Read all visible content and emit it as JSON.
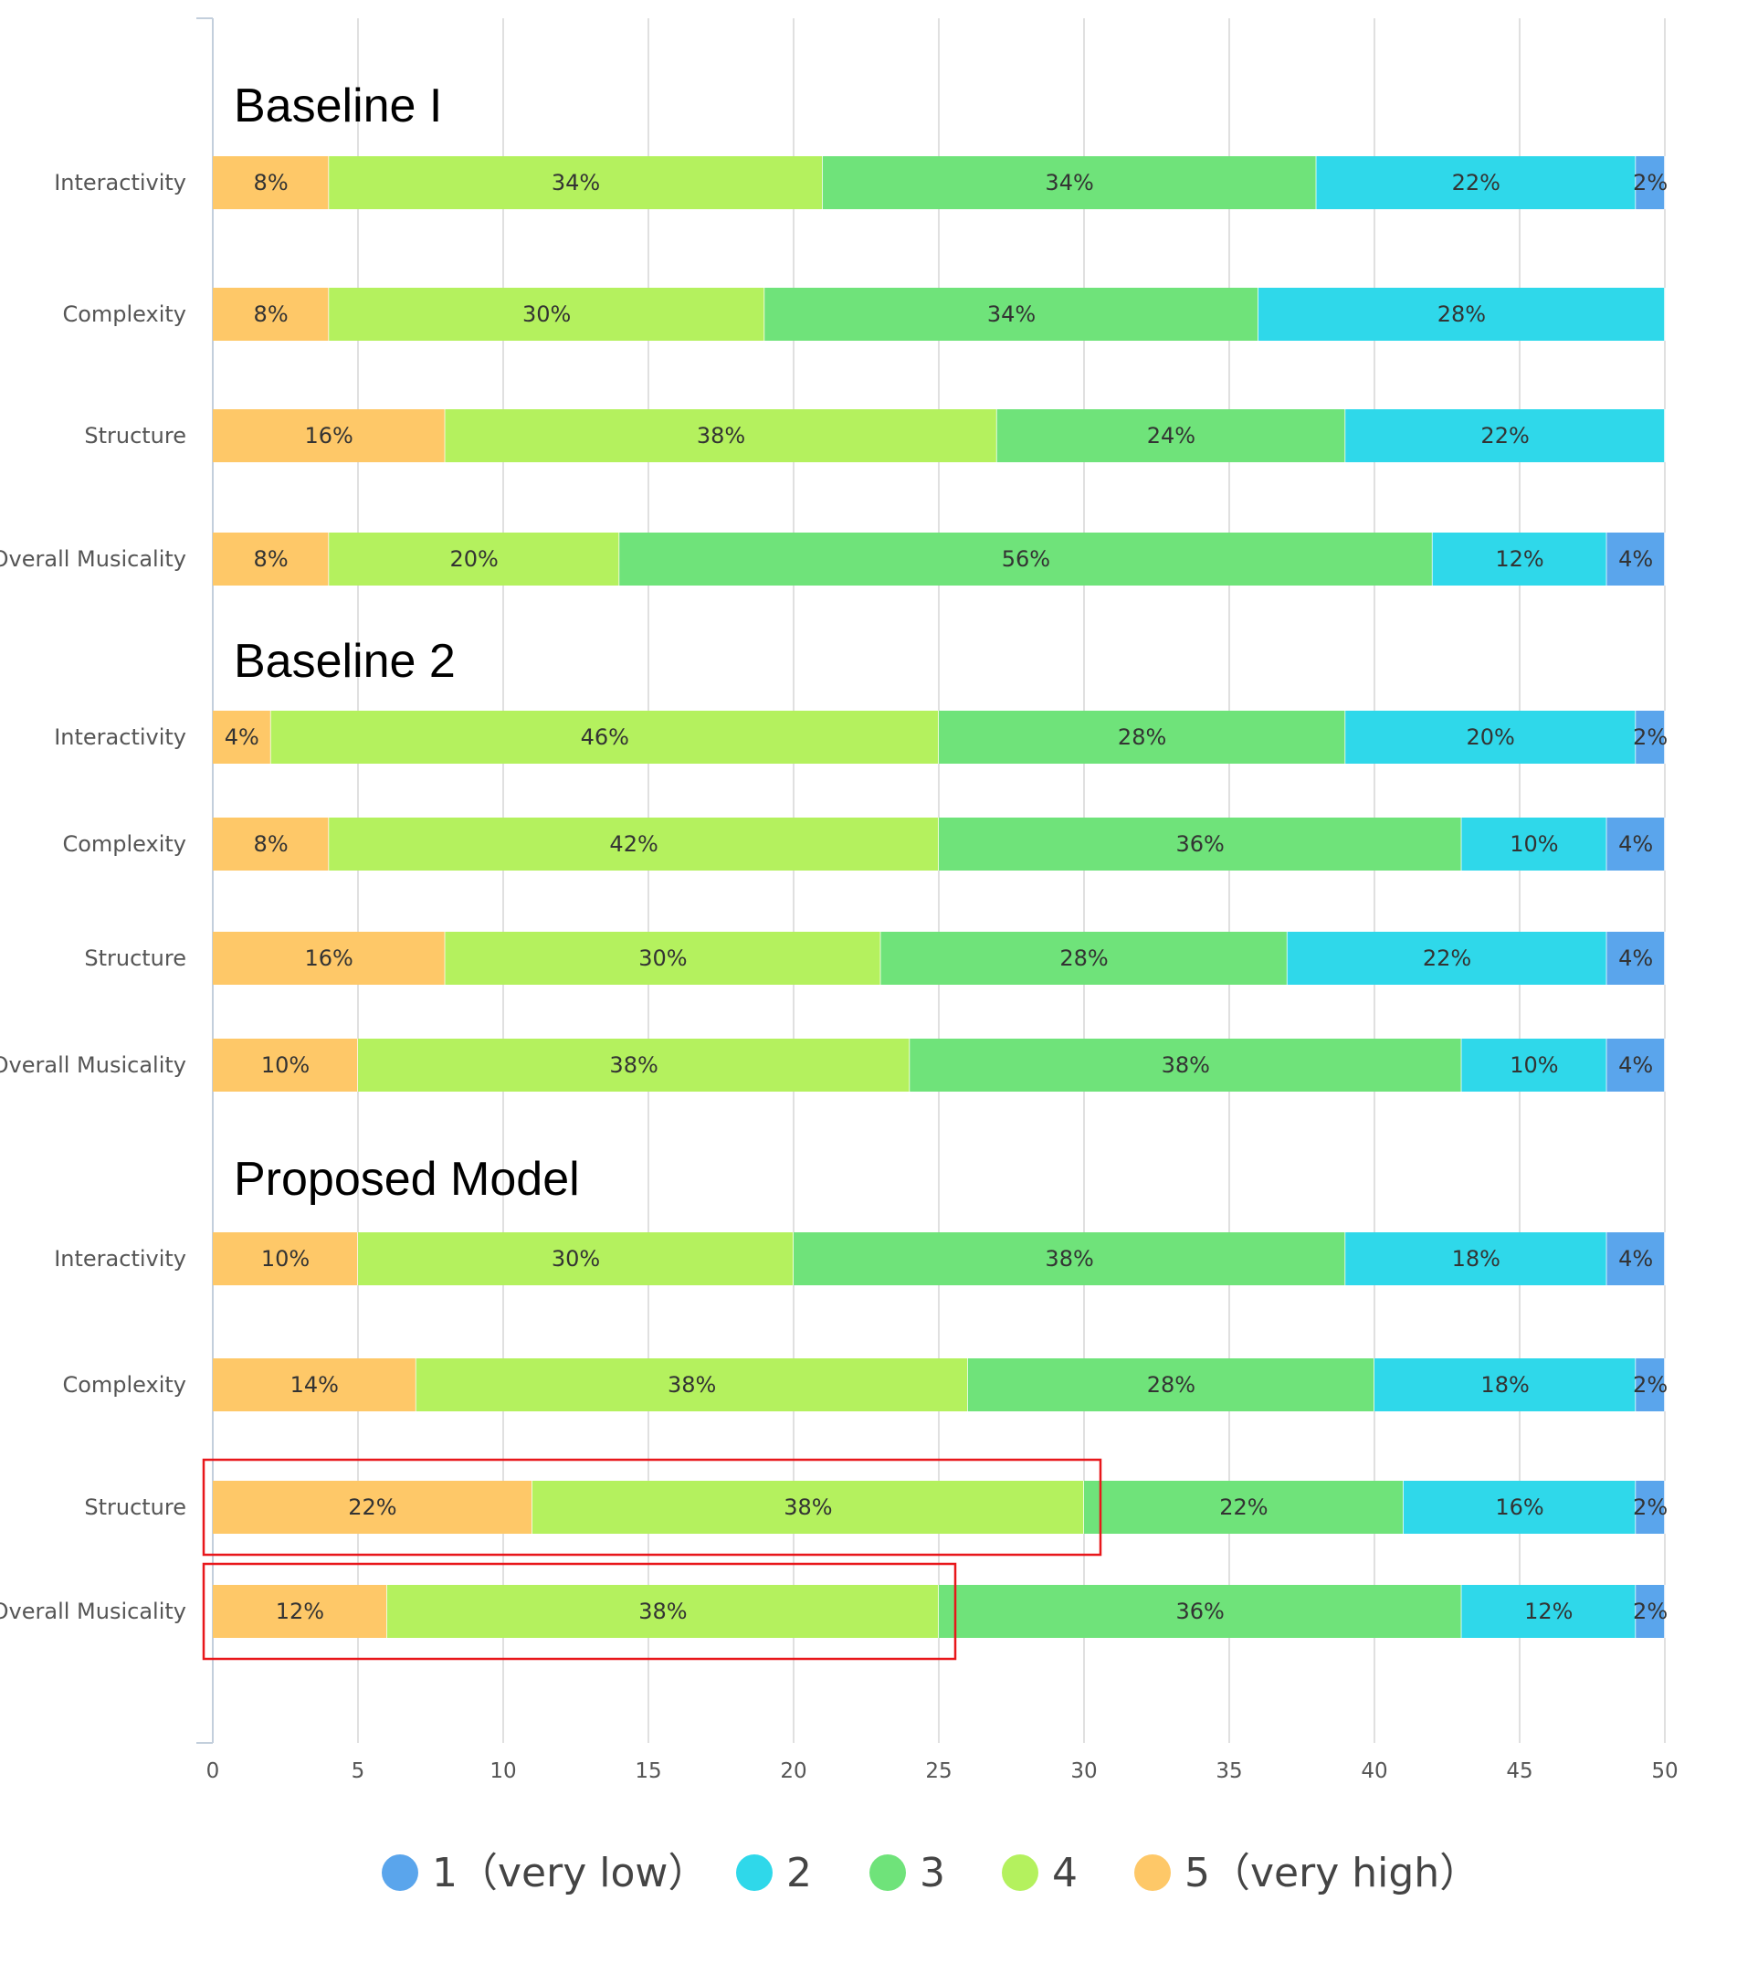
{
  "chart_data": {
    "type": "bar",
    "orientation": "horizontal-stacked",
    "xlim": [
      0,
      50
    ],
    "xticks": [
      "0",
      "5",
      "10",
      "15",
      "20",
      "25",
      "30",
      "35",
      "40",
      "45",
      "50"
    ],
    "grid": true,
    "legend_position": "bottom",
    "segment_order": [
      "5",
      "4",
      "3",
      "2",
      "1"
    ],
    "legend": [
      {
        "key": "1",
        "label": "1（very low）",
        "color": "#5aa5ec"
      },
      {
        "key": "2",
        "label": "2",
        "color": "#2fd8ea"
      },
      {
        "key": "3",
        "label": "3",
        "color": "#6fe37a"
      },
      {
        "key": "4",
        "label": "4",
        "color": "#b4f15e"
      },
      {
        "key": "5",
        "label": "5（very high）",
        "color": "#fec868"
      }
    ],
    "groups": [
      {
        "title": "Baseline I",
        "rows": [
          {
            "category": "Interactivity",
            "counts": {
              "5": 4,
              "4": 17,
              "3": 17,
              "2": 11,
              "1": 1
            },
            "labels": {
              "5": "8%",
              "4": "34%",
              "3": "34%",
              "2": "22%",
              "1": "2%"
            }
          },
          {
            "category": "Complexity",
            "counts": {
              "5": 4,
              "4": 15,
              "3": 17,
              "2": 14,
              "1": 0
            },
            "labels": {
              "5": "8%",
              "4": "30%",
              "3": "34%",
              "2": "28%",
              "1": ""
            }
          },
          {
            "category": "Structure",
            "counts": {
              "5": 8,
              "4": 19,
              "3": 12,
              "2": 11,
              "1": 0
            },
            "labels": {
              "5": "16%",
              "4": "38%",
              "3": "24%",
              "2": "22%",
              "1": ""
            }
          },
          {
            "category": "Overall Musicality",
            "counts": {
              "5": 4,
              "4": 10,
              "3": 28,
              "2": 6,
              "1": 2
            },
            "labels": {
              "5": "8%",
              "4": "20%",
              "3": "56%",
              "2": "12%",
              "1": "4%"
            }
          }
        ]
      },
      {
        "title": "Baseline 2",
        "rows": [
          {
            "category": "Interactivity",
            "counts": {
              "5": 2,
              "4": 23,
              "3": 14,
              "2": 10,
              "1": 1
            },
            "labels": {
              "5": "4%",
              "4": "46%",
              "3": "28%",
              "2": "20%",
              "1": "2%"
            }
          },
          {
            "category": "Complexity",
            "counts": {
              "5": 4,
              "4": 21,
              "3": 18,
              "2": 5,
              "1": 2
            },
            "labels": {
              "5": "8%",
              "4": "42%",
              "3": "36%",
              "2": "10%",
              "1": "4%"
            }
          },
          {
            "category": "Structure",
            "counts": {
              "5": 8,
              "4": 15,
              "3": 14,
              "2": 11,
              "1": 2
            },
            "labels": {
              "5": "16%",
              "4": "30%",
              "3": "28%",
              "2": "22%",
              "1": "4%"
            }
          },
          {
            "category": "Overall Musicality",
            "counts": {
              "5": 5,
              "4": 19,
              "3": 19,
              "2": 5,
              "1": 2
            },
            "labels": {
              "5": "10%",
              "4": "38%",
              "3": "38%",
              "2": "10%",
              "1": "4%"
            }
          }
        ]
      },
      {
        "title": "Proposed Model",
        "rows": [
          {
            "category": "Interactivity",
            "counts": {
              "5": 5,
              "4": 15,
              "3": 19,
              "2": 9,
              "1": 2
            },
            "labels": {
              "5": "10%",
              "4": "30%",
              "3": "38%",
              "2": "18%",
              "1": "4%"
            }
          },
          {
            "category": "Complexity",
            "counts": {
              "5": 7,
              "4": 19,
              "3": 14,
              "2": 9,
              "1": 1
            },
            "labels": {
              "5": "14%",
              "4": "38%",
              "3": "28%",
              "2": "18%",
              "1": "2%"
            }
          },
          {
            "category": "Structure",
            "counts": {
              "5": 11,
              "4": 19,
              "3": 11,
              "2": 8,
              "1": 1
            },
            "labels": {
              "5": "22%",
              "4": "38%",
              "3": "22%",
              "2": "16%",
              "1": "2%"
            },
            "highlight_through": "4"
          },
          {
            "category": "Overall Musicality",
            "counts": {
              "5": 6,
              "4": 19,
              "3": 18,
              "2": 6,
              "1": 1
            },
            "labels": {
              "5": "12%",
              "4": "38%",
              "3": "36%",
              "2": "12%",
              "1": "2%"
            },
            "highlight_through": "4"
          }
        ]
      }
    ],
    "highlight_color": "#e8171b"
  }
}
